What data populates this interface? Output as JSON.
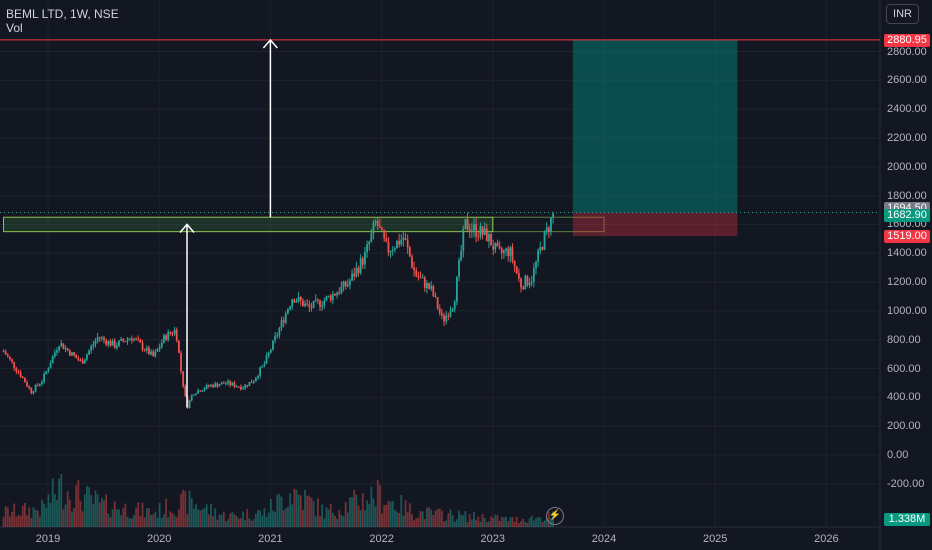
{
  "legend": {
    "symbol_line": "BEML LTD, 1W, NSE",
    "volume_label": "Vol"
  },
  "currency": "INR",
  "price_labels": [
    {
      "value": 2880.95,
      "text": "2880.95",
      "color": "#f23645"
    },
    {
      "value": 1694.5,
      "text": "1694.50",
      "color": "#787b86"
    },
    {
      "value": 1682.9,
      "text": "1682.90",
      "color": "#089981"
    },
    {
      "value": 1519.0,
      "text": "1519.00",
      "color": "#f23645"
    }
  ],
  "volume_label": {
    "text": "1.338M",
    "color": "#089981"
  },
  "colors": {
    "up": "#26a69a",
    "down": "#ef5350",
    "background": "#131722",
    "grid": "#1e222d",
    "zone": "#4caf50",
    "target": "#009688",
    "stop": "#f23645"
  },
  "chart_data": {
    "type": "candlestick",
    "title": "BEML LTD, 1W, NSE",
    "y_axis": {
      "range": [
        -400,
        2960
      ],
      "ticks": [
        -200,
        0,
        200,
        400,
        600,
        800,
        1000,
        1200,
        1400,
        1600,
        1800,
        2000,
        2200,
        2400,
        2600,
        2800
      ],
      "tick_labels": [
        "-200.00",
        "0.00",
        "200.00",
        "400.00",
        "600.00",
        "800.00",
        "1000.00",
        "1200.00",
        "1400.00",
        "1600.00",
        "1800.00",
        "2000.00",
        "2200.00",
        "2400.00",
        "2600.00",
        "2800.00"
      ]
    },
    "x_axis": {
      "range": [
        2018.6,
        2027.0
      ],
      "ticks": [
        2019,
        2020,
        2021,
        2022,
        2023,
        2024,
        2025,
        2026
      ],
      "tick_labels": [
        "2019",
        "2020",
        "2021",
        "2022",
        "2023",
        "2024",
        "2025",
        "2026"
      ]
    },
    "price_path": [
      [
        2018.6,
        720
      ],
      [
        2018.75,
        560
      ],
      [
        2018.85,
        440
      ],
      [
        2018.95,
        520
      ],
      [
        2019.1,
        780
      ],
      [
        2019.3,
        640
      ],
      [
        2019.45,
        820
      ],
      [
        2019.6,
        760
      ],
      [
        2019.75,
        820
      ],
      [
        2019.95,
        680
      ],
      [
        2020.05,
        820
      ],
      [
        2020.15,
        870
      ],
      [
        2020.2,
        560
      ],
      [
        2020.25,
        330
      ],
      [
        2020.3,
        430
      ],
      [
        2020.45,
        480
      ],
      [
        2020.6,
        500
      ],
      [
        2020.75,
        470
      ],
      [
        2020.85,
        520
      ],
      [
        2020.95,
        640
      ],
      [
        2021.05,
        820
      ],
      [
        2021.2,
        1100
      ],
      [
        2021.35,
        1020
      ],
      [
        2021.5,
        1080
      ],
      [
        2021.7,
        1190
      ],
      [
        2021.85,
        1380
      ],
      [
        2021.95,
        1620
      ],
      [
        2022.05,
        1420
      ],
      [
        2022.2,
        1510
      ],
      [
        2022.3,
        1260
      ],
      [
        2022.45,
        1140
      ],
      [
        2022.55,
        930
      ],
      [
        2022.65,
        1060
      ],
      [
        2022.75,
        1600
      ],
      [
        2022.85,
        1560
      ],
      [
        2022.95,
        1520
      ],
      [
        2023.05,
        1390
      ],
      [
        2023.15,
        1420
      ],
      [
        2023.25,
        1180
      ],
      [
        2023.35,
        1230
      ],
      [
        2023.45,
        1480
      ],
      [
        2023.55,
        1683
      ]
    ],
    "volume_profile": [
      [
        2018.6,
        0.2
      ],
      [
        2018.95,
        0.25
      ],
      [
        2019.1,
        0.55
      ],
      [
        2019.5,
        0.3
      ],
      [
        2019.95,
        0.2
      ],
      [
        2020.25,
        0.35
      ],
      [
        2020.6,
        0.15
      ],
      [
        2020.95,
        0.2
      ],
      [
        2021.2,
        0.5
      ],
      [
        2021.5,
        0.2
      ],
      [
        2021.95,
        0.45
      ],
      [
        2022.3,
        0.2
      ],
      [
        2022.75,
        0.15
      ],
      [
        2023.2,
        0.1
      ],
      [
        2023.55,
        0.15
      ]
    ],
    "resistance_zone": {
      "low": 1550,
      "high": 1650,
      "from": 2018.6,
      "to": 2023.0
    },
    "annotations": [
      {
        "type": "arrow",
        "x": 2020.25,
        "from": 330,
        "to": 1600
      },
      {
        "type": "arrow",
        "x": 2021.0,
        "from": 1650,
        "to": 2880
      }
    ],
    "position": {
      "type": "long",
      "entry": 1682.9,
      "target": 2880.95,
      "stop": 1519.0,
      "from": 2023.72,
      "to": 2025.2
    },
    "last_price": 1682.9
  }
}
